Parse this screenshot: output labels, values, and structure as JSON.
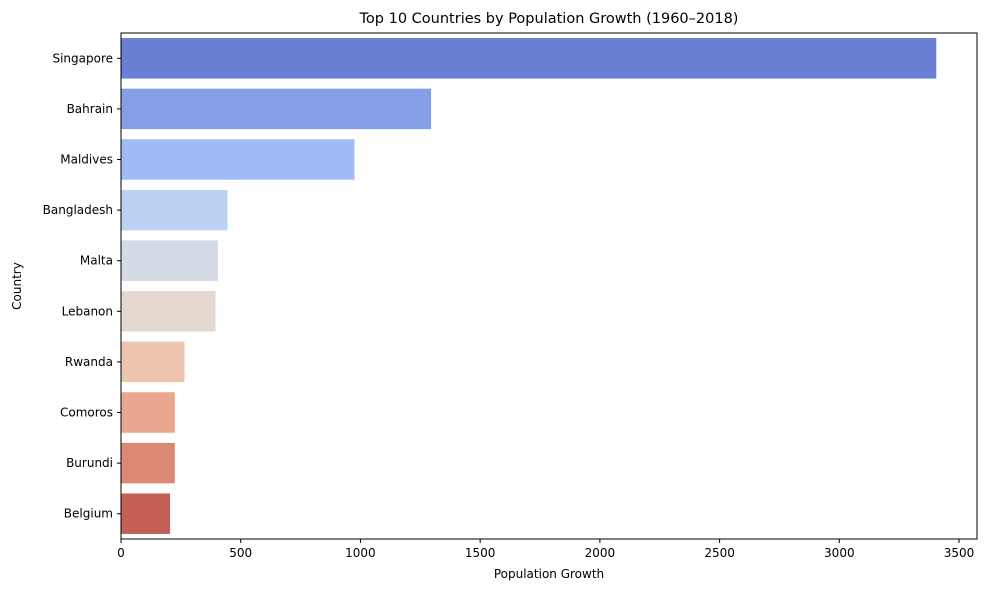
{
  "chart_data": {
    "type": "bar",
    "orientation": "horizontal",
    "title": "Top 10 Countries by Population Growth (1960–2018)",
    "xlabel": "Population Growth",
    "ylabel": "Country",
    "categories": [
      "Singapore",
      "Bahrain",
      "Maldives",
      "Bangladesh",
      "Malta",
      "Lebanon",
      "Rwanda",
      "Comoros",
      "Burundi",
      "Belgium"
    ],
    "values": [
      3405,
      1295,
      975,
      445,
      405,
      395,
      265,
      225,
      225,
      205
    ],
    "colors": [
      "#6a80d4",
      "#849fe6",
      "#a0bcf6",
      "#bdd1f3",
      "#d5dbe5",
      "#e4d8d0",
      "#eec5b0",
      "#e9a78f",
      "#db8975",
      "#c45f55"
    ],
    "xlim": [
      0,
      3575
    ],
    "xticks": [
      0,
      500,
      1000,
      1500,
      2000,
      2500,
      3000,
      3500
    ],
    "xtick_labels": [
      "0",
      "500",
      "1000",
      "1500",
      "2000",
      "2500",
      "3000",
      "3500"
    ],
    "grid": false,
    "legend": "none"
  }
}
